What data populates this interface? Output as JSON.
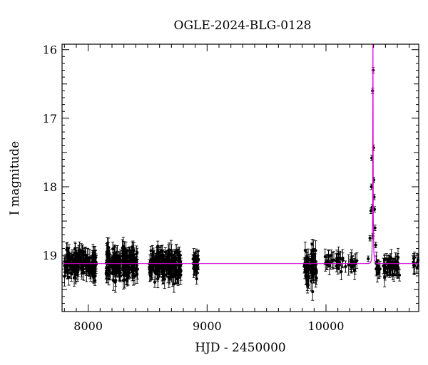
{
  "chart_data": {
    "type": "scatter",
    "title": "OGLE-2024-BLG-0128",
    "xlabel": "HJD - 2450000",
    "ylabel": "I magnitude",
    "xlim": [
      7780,
      10780
    ],
    "ylim": [
      19.82,
      15.92
    ],
    "y_inverted": true,
    "x_ticks_major": [
      8000,
      9000,
      10000
    ],
    "x_tick_labels": [
      "8000",
      "9000",
      "10000"
    ],
    "y_ticks_major": [
      16,
      17,
      18,
      19
    ],
    "y_tick_labels": [
      "16",
      "17",
      "18",
      "19"
    ],
    "colors": {
      "points": "#000000",
      "model": "#d400d4",
      "axes": "#000000"
    },
    "model_curve": {
      "name": "",
      "baseline_mag": 19.12,
      "peak_time": 10395,
      "peak_mag": 15.9,
      "timescale_days": 9
    },
    "baseline_segments": [
      {
        "x_start": 7800,
        "x_end": 8070,
        "mean_mag": 19.12,
        "scatter": 0.18,
        "n": 170
      },
      {
        "x_start": 8150,
        "x_end": 8420,
        "mean_mag": 19.12,
        "scatter": 0.2,
        "n": 190
      },
      {
        "x_start": 8510,
        "x_end": 8780,
        "mean_mag": 19.13,
        "scatter": 0.2,
        "n": 200
      },
      {
        "x_start": 8880,
        "x_end": 8930,
        "mean_mag": 19.1,
        "scatter": 0.16,
        "n": 30
      },
      {
        "x_start": 9810,
        "x_end": 9920,
        "mean_mag": 19.18,
        "scatter": 0.24,
        "n": 70
      },
      {
        "x_start": 9980,
        "x_end": 10270,
        "mean_mag": 19.1,
        "scatter": 0.12,
        "n": 45
      },
      {
        "x_start": 10420,
        "x_end": 10620,
        "mean_mag": 19.17,
        "scatter": 0.12,
        "n": 60
      },
      {
        "x_start": 10730,
        "x_end": 10780,
        "mean_mag": 19.1,
        "scatter": 0.1,
        "n": 10
      }
    ],
    "event_points": [
      {
        "x": 10355,
        "y": 19.05
      },
      {
        "x": 10370,
        "y": 18.75
      },
      {
        "x": 10378,
        "y": 18.35
      },
      {
        "x": 10382,
        "y": 18.0
      },
      {
        "x": 10385,
        "y": 17.58
      },
      {
        "x": 10392,
        "y": 16.6
      },
      {
        "x": 10397,
        "y": 16.3
      },
      {
        "x": 10400,
        "y": 17.43
      },
      {
        "x": 10402,
        "y": 17.9
      },
      {
        "x": 10405,
        "y": 18.15
      },
      {
        "x": 10408,
        "y": 18.33
      },
      {
        "x": 10412,
        "y": 18.6
      },
      {
        "x": 10418,
        "y": 18.85
      },
      {
        "x": 10388,
        "y": 18.3
      },
      {
        "x": 10395,
        "y": 18.72
      }
    ]
  }
}
